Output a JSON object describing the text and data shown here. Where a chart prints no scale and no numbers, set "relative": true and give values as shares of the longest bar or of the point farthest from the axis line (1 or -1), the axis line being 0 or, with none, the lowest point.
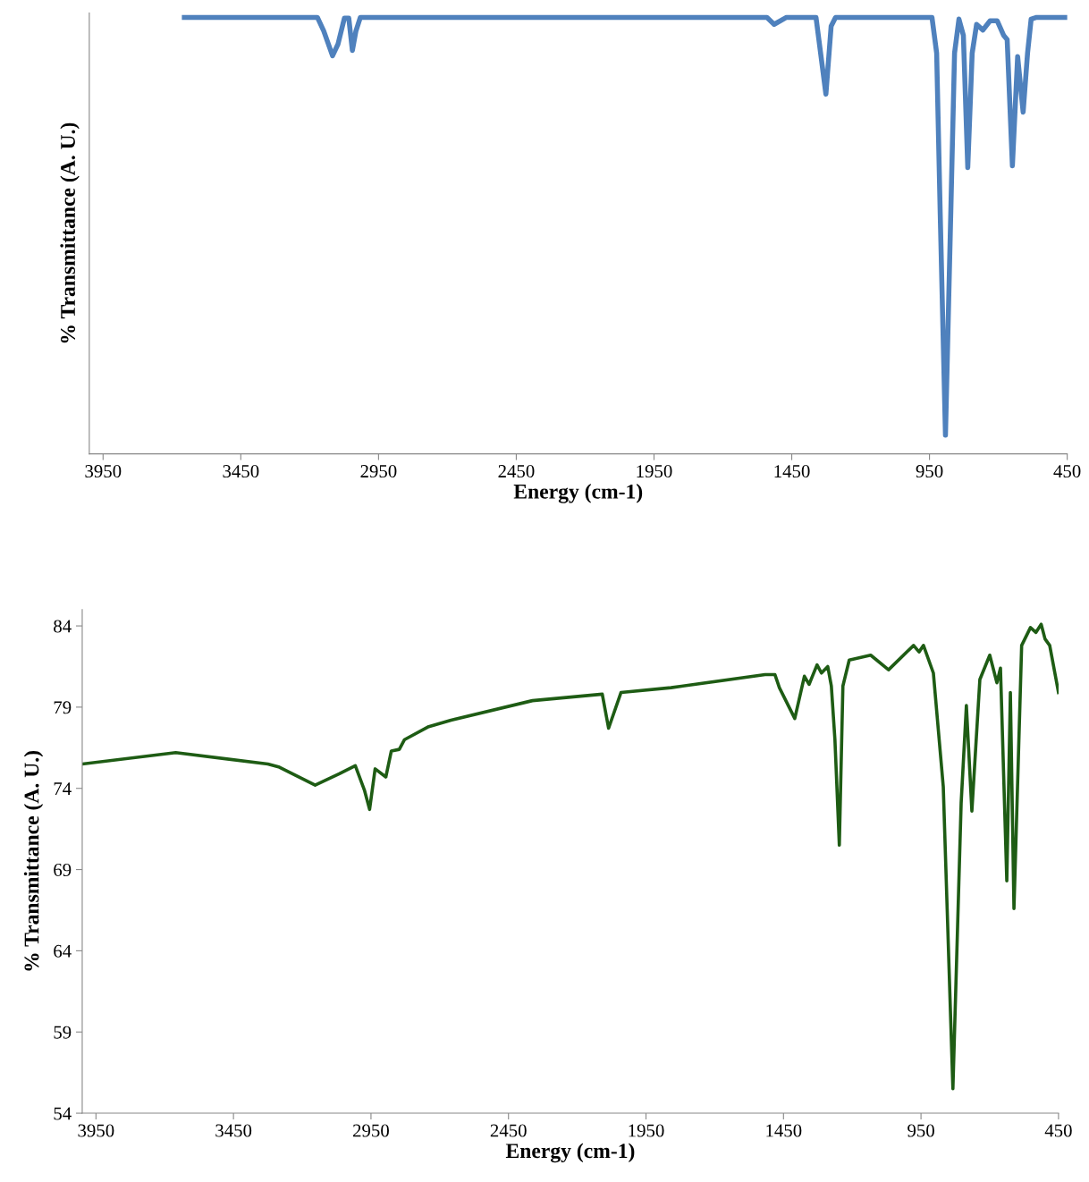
{
  "chart_data": [
    {
      "type": "line",
      "relative": true,
      "xlabel": "Energy (cm-1)",
      "ylabel": "% Transmittance (A. U.)",
      "xlim": [
        4000,
        450
      ],
      "xticks": [
        3950,
        3450,
        2950,
        2450,
        1950,
        1450,
        950,
        450
      ],
      "tick_labels": "x",
      "series": [
        {
          "color": "#4f81bd",
          "x": [
            3655,
            3172,
            3149,
            3117,
            3097,
            3074,
            3058,
            3045,
            3032,
            3016,
            1540,
            1514,
            1469,
            1362,
            1326,
            1307,
            1291,
            941,
            924,
            911,
            892,
            872,
            859,
            843,
            827,
            811,
            795,
            779,
            756,
            730,
            704,
            681,
            668,
            649,
            630,
            610,
            594,
            581,
            561,
            450
          ],
          "values": [
            1.0,
            1.0,
            0.969,
            0.912,
            0.939,
            0.998,
            0.998,
            0.924,
            0.969,
            1.0,
            1.0,
            0.984,
            1.0,
            1.0,
            0.824,
            0.98,
            1.0,
            1.0,
            0.918,
            0.549,
            0.043,
            0.57,
            0.918,
            0.996,
            0.959,
            0.656,
            0.918,
            0.984,
            0.971,
            0.992,
            0.992,
            0.959,
            0.949,
            0.66,
            0.91,
            0.783,
            0.918,
            0.996,
            1.0,
            1.0
          ]
        }
      ]
    },
    {
      "type": "line",
      "xlabel": "Energy (cm-1)",
      "ylabel": "% Transmittance (A. U.)",
      "xlim": [
        4000,
        450
      ],
      "xticks": [
        3950,
        3450,
        2950,
        2450,
        1950,
        1450,
        950,
        450
      ],
      "ylim": [
        54,
        85
      ],
      "yticks": [
        54,
        59,
        64,
        69,
        74,
        79,
        84
      ],
      "series": [
        {
          "color": "#1e5c14",
          "x": [
            3999,
            3660,
            3325,
            3283,
            3153,
            3065,
            3007,
            2974,
            2955,
            2935,
            2896,
            2876,
            2847,
            2828,
            2740,
            2659,
            2363,
            2109,
            2086,
            2041,
            1859,
            1517,
            1481,
            1465,
            1409,
            1374,
            1357,
            1328,
            1312,
            1289,
            1276,
            1263,
            1247,
            1234,
            1211,
            1133,
            1068,
            977,
            957,
            941,
            905,
            869,
            834,
            804,
            785,
            765,
            736,
            700,
            674,
            661,
            638,
            625,
            612,
            584,
            552,
            532,
            513,
            499,
            482,
            450
          ],
          "values": [
            75.5,
            76.2,
            75.5,
            75.3,
            74.2,
            74.9,
            75.4,
            73.9,
            72.7,
            75.2,
            74.7,
            76.3,
            76.4,
            77.0,
            77.8,
            78.2,
            79.4,
            79.8,
            77.7,
            79.9,
            80.2,
            81.0,
            81.0,
            80.2,
            78.3,
            80.9,
            80.4,
            81.6,
            81.1,
            81.5,
            80.3,
            77.0,
            70.5,
            80.3,
            81.9,
            82.2,
            81.3,
            82.8,
            82.4,
            82.8,
            81.1,
            74.1,
            55.5,
            73.1,
            79.1,
            72.6,
            80.7,
            82.2,
            80.5,
            81.4,
            68.3,
            79.9,
            66.6,
            82.8,
            83.9,
            83.6,
            84.1,
            83.2,
            82.8,
            79.9
          ]
        }
      ]
    }
  ]
}
